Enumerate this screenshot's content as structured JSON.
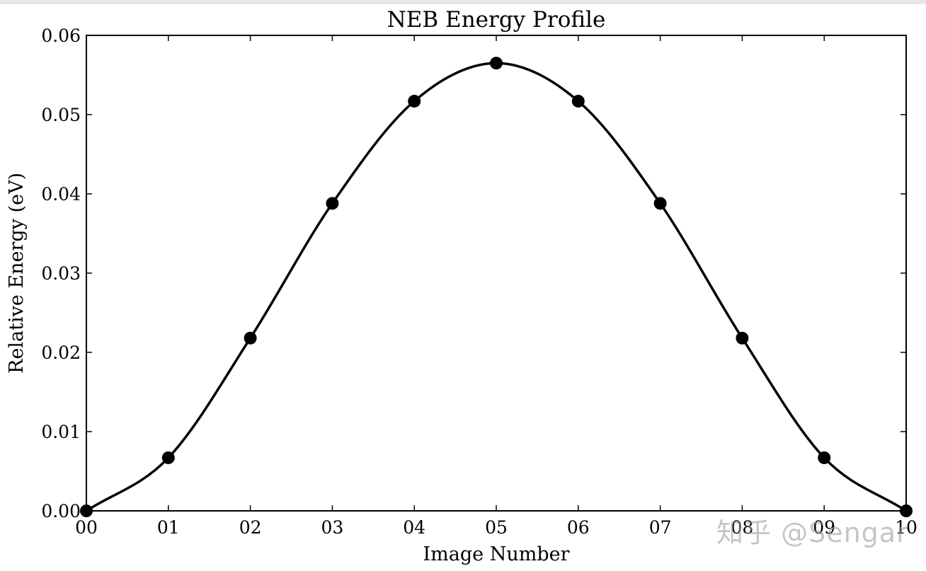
{
  "chart_data": {
    "type": "line",
    "title": "NEB Energy Profile",
    "xlabel": "Image Number",
    "ylabel": "Relative Energy (eV)",
    "xlim": [
      0,
      10
    ],
    "ylim": [
      0,
      0.06
    ],
    "x_tick_labels": [
      "00",
      "01",
      "02",
      "03",
      "04",
      "05",
      "06",
      "07",
      "08",
      "09",
      "10"
    ],
    "y_tick_labels": [
      "0.00",
      "0.01",
      "0.02",
      "0.03",
      "0.04",
      "0.05",
      "0.06"
    ],
    "grid": false,
    "colors": {
      "line": "#000000",
      "markers": "#000000"
    },
    "series": [
      {
        "x": [
          0,
          1,
          2,
          3,
          4,
          5,
          6,
          7,
          8,
          9,
          10
        ],
        "values": [
          0.0,
          0.0067,
          0.0218,
          0.0388,
          0.0517,
          0.0565,
          0.0517,
          0.0388,
          0.0218,
          0.0067,
          0.0
        ]
      }
    ]
  },
  "watermark": "知乎 @Sengar"
}
